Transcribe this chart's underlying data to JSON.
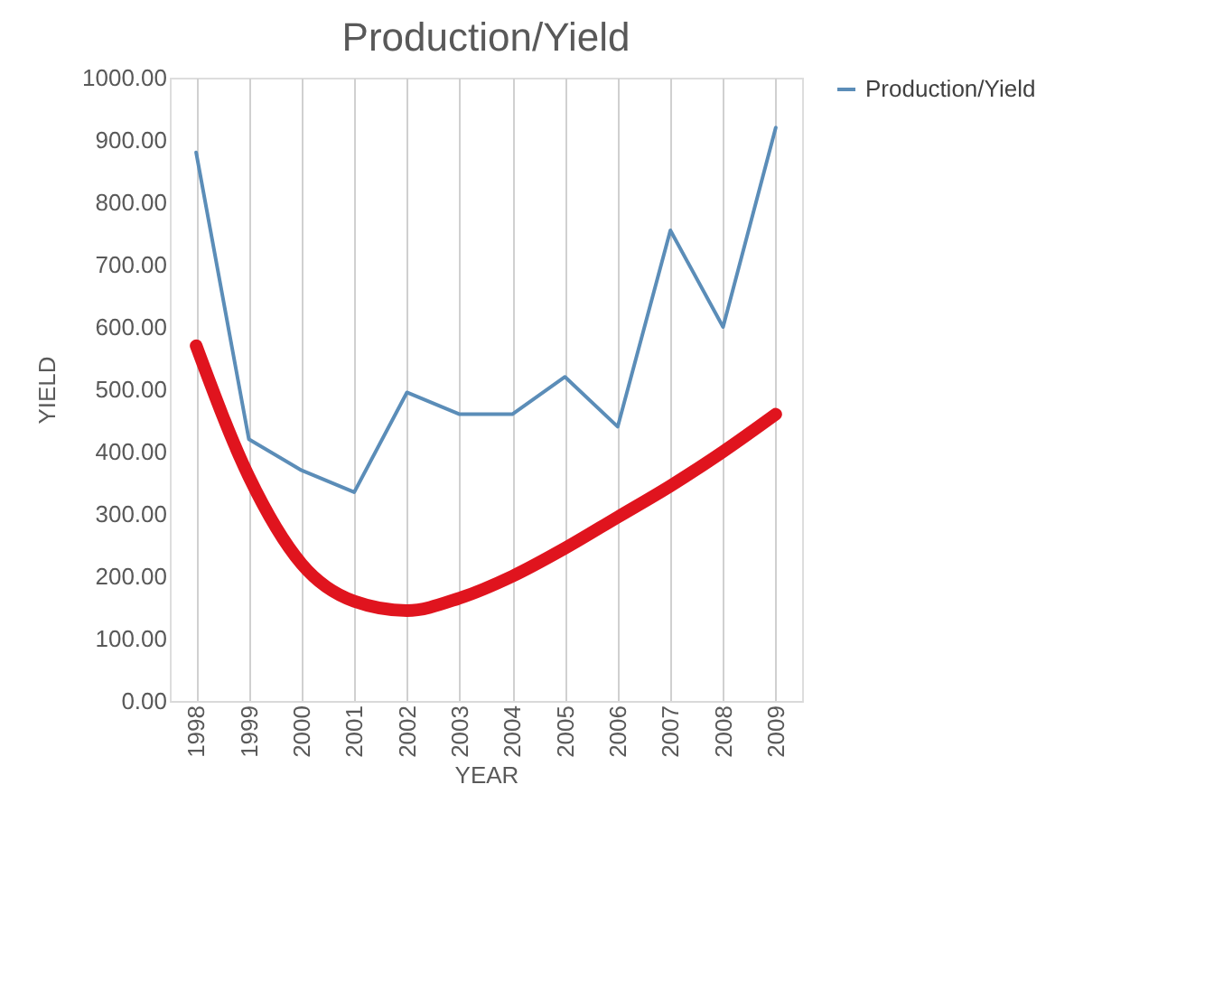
{
  "chart_data": {
    "type": "line",
    "title": "Production/Yield",
    "xlabel": "YEAR",
    "ylabel": "YIELD",
    "categories": [
      "1998",
      "1999",
      "2000",
      "2001",
      "2002",
      "2003",
      "2004",
      "2005",
      "2006",
      "2007",
      "2008",
      "2009"
    ],
    "series": [
      {
        "name": "Production/Yield",
        "color": "#5b8db8",
        "values": [
          880,
          420,
          370,
          335,
          495,
          460,
          460,
          520,
          440,
          755,
          600,
          920
        ]
      },
      {
        "type": "line",
        "color": "#e0141e",
        "values": [
          570,
          360,
          220,
          160,
          145,
          165,
          200,
          245,
          295,
          345,
          400,
          460
        ]
      }
    ],
    "ylim": [
      0,
      1000
    ],
    "yticks": [
      {
        "value": 0,
        "label": "0.00"
      },
      {
        "value": 100,
        "label": "100.00"
      },
      {
        "value": 200,
        "label": "200.00"
      },
      {
        "value": 300,
        "label": "300.00"
      },
      {
        "value": 400,
        "label": "400.00"
      },
      {
        "value": 500,
        "label": "500.00"
      },
      {
        "value": 600,
        "label": "600.00"
      },
      {
        "value": 700,
        "label": "700.00"
      },
      {
        "value": 800,
        "label": "800.00"
      },
      {
        "value": 900,
        "label": "900.00"
      },
      {
        "value": 1000,
        "label": "1000.00"
      }
    ],
    "grid": "x",
    "legend": "right"
  }
}
